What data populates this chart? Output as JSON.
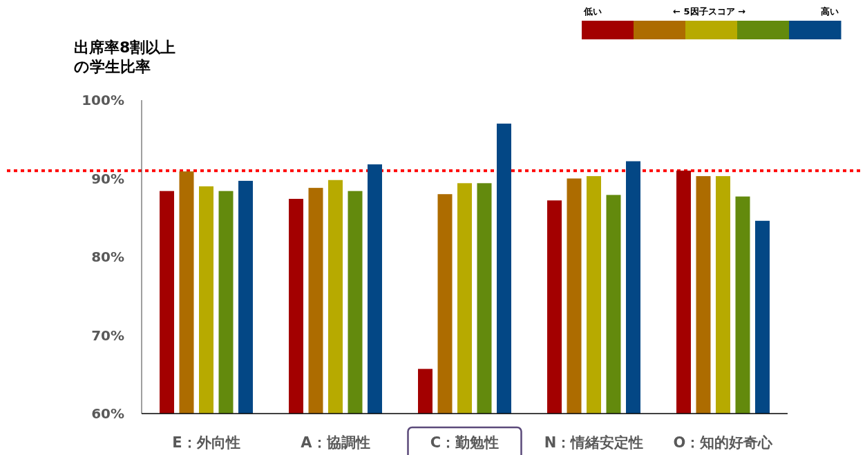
{
  "chart_data": {
    "type": "bar",
    "ylabel": "出席率8割以上の学生比率",
    "legend_title": "← 5因子スコア →",
    "annotations": [
      "低い",
      "高い"
    ],
    "categories": [
      "E：外向性",
      "A：協調性",
      "C：勤勉性",
      "N：情緒安定性",
      "O：知的好奇心"
    ],
    "series": [
      {
        "color": "#a30000",
        "values": [
          88.4,
          87.4,
          65.7,
          87.2,
          91.0
        ]
      },
      {
        "color": "#ad6c00",
        "values": [
          90.9,
          88.8,
          88.0,
          90.0,
          90.3
        ]
      },
      {
        "color": "#b7aa00",
        "values": [
          89.0,
          89.8,
          89.4,
          90.3,
          90.3
        ]
      },
      {
        "color": "#638a0d",
        "values": [
          88.4,
          88.4,
          89.4,
          87.9,
          87.7
        ]
      },
      {
        "color": "#034785",
        "values": [
          89.7,
          91.8,
          97.0,
          92.2,
          84.6
        ]
      }
    ],
    "ylim": [
      60,
      100
    ],
    "yticks": [
      {
        "value": 60,
        "label": "60%"
      },
      {
        "value": 70,
        "label": "70%"
      },
      {
        "value": 80,
        "label": "80%"
      },
      {
        "value": 90,
        "label": "90%"
      },
      {
        "value": 100,
        "label": "100%"
      }
    ],
    "ref_lines": [
      {
        "axis": "y",
        "value": 91.0,
        "color": "#ff0000",
        "line_style": "dotted"
      }
    ]
  }
}
